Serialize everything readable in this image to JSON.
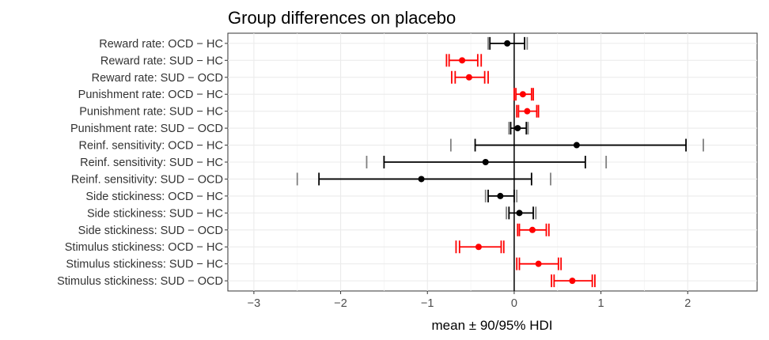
{
  "chart_data": {
    "type": "forest",
    "title": "Group differences on placebo",
    "xlabel": "mean ± 90/95% HDI",
    "ylabel": "",
    "xlim": [
      -3.3,
      2.8
    ],
    "xticks": [
      -3,
      -2,
      -1,
      0,
      1,
      2
    ],
    "grid": true,
    "colors": {
      "significant": "#ff0000",
      "nonsignificant": "#000000",
      "hdi95": "#808080"
    },
    "rows": [
      {
        "label": "Reward rate: OCD − HC",
        "mean": -0.08,
        "hdi90": [
          -0.28,
          0.12
        ],
        "hdi95": [
          -0.3,
          0.15
        ],
        "significant": false
      },
      {
        "label": "Reward rate: SUD − HC",
        "mean": -0.6,
        "hdi90": [
          -0.75,
          -0.42
        ],
        "hdi95": [
          -0.78,
          -0.38
        ],
        "significant": true
      },
      {
        "label": "Reward rate: SUD − OCD",
        "mean": -0.52,
        "hdi90": [
          -0.68,
          -0.34
        ],
        "hdi95": [
          -0.72,
          -0.3
        ],
        "significant": true
      },
      {
        "label": "Punishment rate: OCD − HC",
        "mean": 0.1,
        "hdi90": [
          0.02,
          0.2
        ],
        "hdi95": [
          0.0,
          0.22
        ],
        "significant": true
      },
      {
        "label": "Punishment rate: SUD − HC",
        "mean": 0.15,
        "hdi90": [
          0.05,
          0.26
        ],
        "hdi95": [
          0.03,
          0.28
        ],
        "significant": true
      },
      {
        "label": "Punishment rate: SUD − OCD",
        "mean": 0.04,
        "hdi90": [
          -0.04,
          0.14
        ],
        "hdi95": [
          -0.06,
          0.16
        ],
        "significant": false
      },
      {
        "label": "Reinf. sensitivity: OCD − HC",
        "mean": 0.72,
        "hdi90": [
          -0.45,
          1.98
        ],
        "hdi95": [
          -0.73,
          2.18
        ],
        "significant": false
      },
      {
        "label": "Reinf. sensitivity: SUD − HC",
        "mean": -0.33,
        "hdi90": [
          -1.5,
          0.82
        ],
        "hdi95": [
          -1.7,
          1.06
        ],
        "significant": false
      },
      {
        "label": "Reinf. sensitivity: SUD − OCD",
        "mean": -1.07,
        "hdi90": [
          -2.25,
          0.2
        ],
        "hdi95": [
          -2.5,
          0.42
        ],
        "significant": false
      },
      {
        "label": "Side stickiness: OCD − HC",
        "mean": -0.16,
        "hdi90": [
          -0.3,
          0.0
        ],
        "hdi95": [
          -0.33,
          0.03
        ],
        "significant": false
      },
      {
        "label": "Side stickiness: SUD − HC",
        "mean": 0.06,
        "hdi90": [
          -0.06,
          0.22
        ],
        "hdi95": [
          -0.09,
          0.25
        ],
        "significant": false
      },
      {
        "label": "Side stickiness: SUD − OCD",
        "mean": 0.21,
        "hdi90": [
          0.06,
          0.37
        ],
        "hdi95": [
          0.04,
          0.4
        ],
        "significant": true
      },
      {
        "label": "Stimulus stickiness: OCD − HC",
        "mean": -0.41,
        "hdi90": [
          -0.63,
          -0.15
        ],
        "hdi95": [
          -0.67,
          -0.12
        ],
        "significant": true
      },
      {
        "label": "Stimulus stickiness: SUD − HC",
        "mean": 0.28,
        "hdi90": [
          0.06,
          0.51
        ],
        "hdi95": [
          0.03,
          0.54
        ],
        "significant": true
      },
      {
        "label": "Stimulus stickiness: SUD − OCD",
        "mean": 0.67,
        "hdi90": [
          0.46,
          0.9
        ],
        "hdi95": [
          0.43,
          0.93
        ],
        "significant": true
      }
    ]
  }
}
